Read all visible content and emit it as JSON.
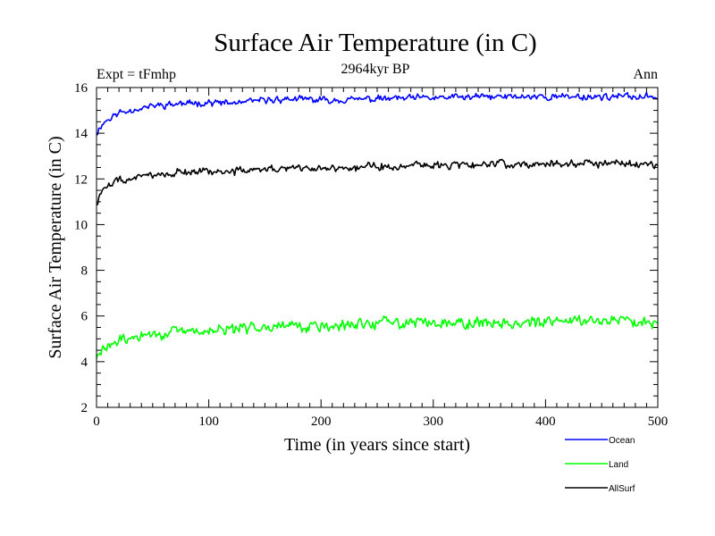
{
  "chart_data": {
    "type": "line",
    "title": "Surface Air Temperature (in C)",
    "subtitle": "2964kyr BP",
    "left_label": "Expt = tFmhp",
    "right_label": "Ann",
    "xlabel": "Time (in years since start)",
    "ylabel": "Surface Air Temperature (in C)",
    "xlim": [
      0,
      500
    ],
    "ylim": [
      2,
      16
    ],
    "x_ticks": [
      0,
      100,
      200,
      300,
      400,
      500
    ],
    "x_tick_labels": [
      "0",
      "100",
      "200",
      "300",
      "400",
      "500"
    ],
    "y_ticks": [
      2,
      4,
      6,
      8,
      10,
      12,
      14,
      16
    ],
    "y_tick_labels": [
      "2",
      "4",
      "6",
      "8",
      "10",
      "12",
      "14",
      "16"
    ],
    "grid": false,
    "legend_position": "bottom-right",
    "x": [
      0,
      5,
      10,
      20,
      30,
      40,
      50,
      60,
      80,
      100,
      120,
      140,
      150,
      175,
      200,
      250,
      300,
      350,
      400,
      425,
      450,
      475,
      500
    ],
    "series": [
      {
        "name": "Ocean",
        "color": "#0000ff",
        "values": [
          14.0,
          14.4,
          14.6,
          14.9,
          15.0,
          15.1,
          15.2,
          15.25,
          15.3,
          15.35,
          15.3,
          15.4,
          15.45,
          15.5,
          15.45,
          15.5,
          15.55,
          15.6,
          15.6,
          15.6,
          15.6,
          15.6,
          15.6
        ]
      },
      {
        "name": "Land",
        "color": "#00ff00",
        "values": [
          4.1,
          4.5,
          4.7,
          4.9,
          5.0,
          5.1,
          5.2,
          5.25,
          5.3,
          5.35,
          5.4,
          5.5,
          5.6,
          5.6,
          5.5,
          5.7,
          5.75,
          5.7,
          5.7,
          5.85,
          5.8,
          5.8,
          5.75
        ]
      },
      {
        "name": "AllSurf",
        "color": "#000000",
        "values": [
          10.9,
          11.5,
          11.7,
          11.9,
          12.0,
          12.1,
          12.2,
          12.25,
          12.3,
          12.35,
          12.3,
          12.4,
          12.45,
          12.5,
          12.45,
          12.55,
          12.6,
          12.65,
          12.65,
          12.7,
          12.7,
          12.65,
          12.65
        ]
      }
    ]
  }
}
